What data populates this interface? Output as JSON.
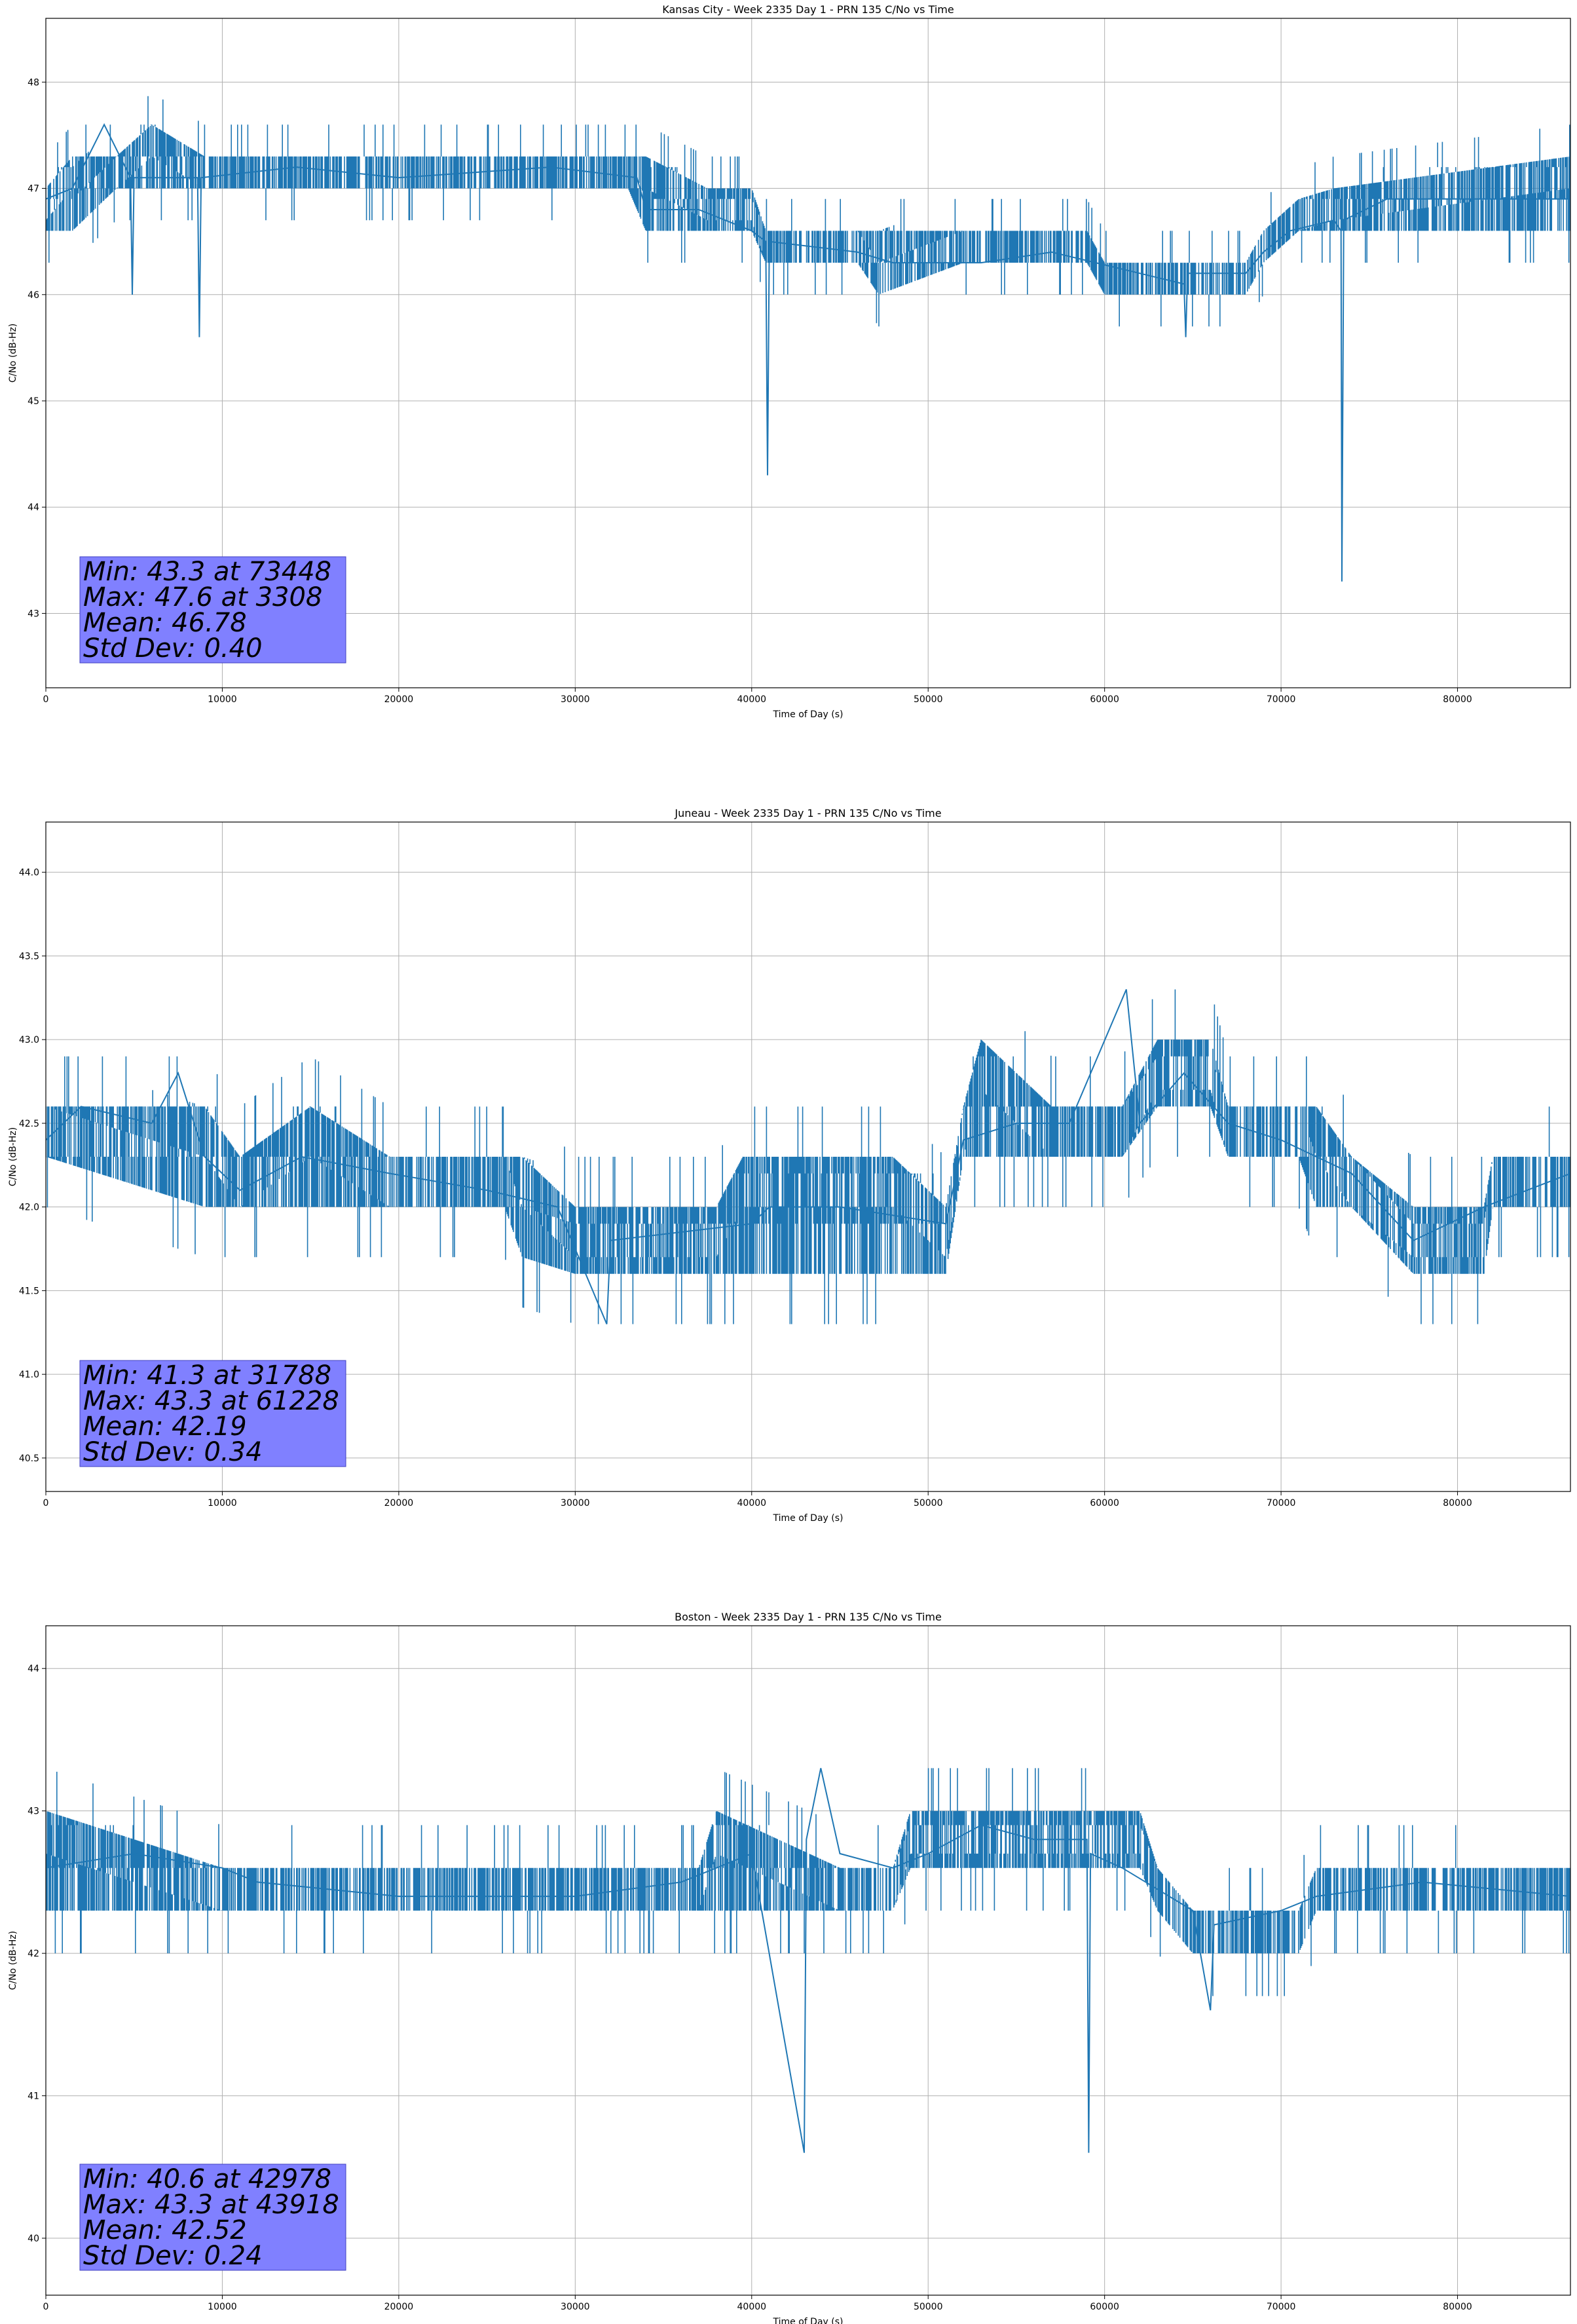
{
  "chart_data": [
    {
      "type": "line",
      "title": "Kansas City - Week 2335 Day 1 - PRN 135 C/No vs Time",
      "xlabel": "Time of Day (s)",
      "ylabel": "C/No (dB-Hz)",
      "xlim": [
        0,
        86400
      ],
      "ylim": [
        42.3,
        48.6
      ],
      "xticks": [
        0,
        10000,
        20000,
        30000,
        40000,
        50000,
        60000,
        70000,
        80000
      ],
      "xtick_labels": [
        "0",
        "10000",
        "20000",
        "30000",
        "40000",
        "50000",
        "60000",
        "70000",
        "80000"
      ],
      "yticks": [
        43,
        44,
        45,
        46,
        47,
        48
      ],
      "ytick_labels": [
        "43",
        "44",
        "45",
        "46",
        "47",
        "48"
      ],
      "grid": true,
      "line_color": "#1f77b4",
      "box_color": "#8080ff",
      "stats": [
        "Min: 43.3 at 73448",
        "Max: 47.6 at 3308",
        "Mean: 46.78",
        "Std Dev: 0.40"
      ],
      "series": [
        {
          "points": [
            [
              0,
              46.9
            ],
            [
              1500,
              47.0
            ],
            [
              3308,
              47.6
            ],
            [
              4800,
              47.1
            ],
            [
              4900,
              46.0
            ],
            [
              5000,
              47.1
            ],
            [
              8600,
              47.1
            ],
            [
              8700,
              45.6
            ],
            [
              8800,
              47.1
            ],
            [
              14200,
              47.2
            ],
            [
              20000,
              47.1
            ],
            [
              28600,
              47.2
            ],
            [
              33500,
              47.1
            ],
            [
              34000,
              46.8
            ],
            [
              37000,
              46.8
            ],
            [
              40000,
              46.6
            ],
            [
              40800,
              46.5
            ],
            [
              40900,
              44.3
            ],
            [
              41000,
              46.5
            ],
            [
              46000,
              46.4
            ],
            [
              48000,
              46.3
            ],
            [
              53000,
              46.3
            ],
            [
              57000,
              46.4
            ],
            [
              59500,
              46.3
            ],
            [
              62000,
              46.2
            ],
            [
              64500,
              46.1
            ],
            [
              64600,
              45.6
            ],
            [
              64700,
              46.2
            ],
            [
              68000,
              46.2
            ],
            [
              69000,
              46.4
            ],
            [
              70500,
              46.6
            ],
            [
              73000,
              46.7
            ],
            [
              73400,
              46.6
            ],
            [
              73448,
              43.3
            ],
            [
              73550,
              46.7
            ],
            [
              76000,
              46.9
            ],
            [
              82000,
              46.9
            ],
            [
              86400,
              46.9
            ]
          ],
          "band": [
            [
              0,
              46.6,
              47.0
            ],
            [
              1500,
              46.6,
              47.3
            ],
            [
              4000,
              47.0,
              47.3
            ],
            [
              6000,
              47.0,
              47.6
            ],
            [
              9000,
              47.0,
              47.3
            ],
            [
              33000,
              47.0,
              47.3
            ],
            [
              34000,
              46.6,
              47.3
            ],
            [
              37500,
              46.6,
              47.0
            ],
            [
              40000,
              46.6,
              47.0
            ],
            [
              40800,
              46.3,
              46.6
            ],
            [
              46000,
              46.3,
              46.6
            ],
            [
              47200,
              46.0,
              46.6
            ],
            [
              52000,
              46.3,
              46.6
            ],
            [
              59000,
              46.3,
              46.6
            ],
            [
              60000,
              46.0,
              46.3
            ],
            [
              68000,
              46.0,
              46.3
            ],
            [
              69000,
              46.3,
              46.6
            ],
            [
              71000,
              46.6,
              46.9
            ],
            [
              73000,
              46.6,
              47.0
            ],
            [
              86400,
              46.6,
              47.3
            ]
          ]
        }
      ]
    },
    {
      "type": "line",
      "title": "Juneau - Week 2335 Day 1 - PRN 135 C/No vs Time",
      "xlabel": "Time of Day (s)",
      "ylabel": "C/No (dB-Hz)",
      "xlim": [
        0,
        86400
      ],
      "ylim": [
        40.3,
        44.3
      ],
      "xticks": [
        0,
        10000,
        20000,
        30000,
        40000,
        50000,
        60000,
        70000,
        80000
      ],
      "xtick_labels": [
        "0",
        "10000",
        "20000",
        "30000",
        "40000",
        "50000",
        "60000",
        "70000",
        "80000"
      ],
      "yticks": [
        40.5,
        41.0,
        41.5,
        42.0,
        42.5,
        43.0,
        43.5,
        44.0
      ],
      "ytick_labels": [
        "40.5",
        "41.0",
        "41.5",
        "42.0",
        "42.5",
        "43.0",
        "43.5",
        "44.0"
      ],
      "grid": true,
      "line_color": "#1f77b4",
      "box_color": "#8080ff",
      "stats": [
        "Min: 41.3 at 31788",
        "Max: 43.3 at 61228",
        "Mean: 42.19",
        "Std Dev: 0.34"
      ],
      "series": [
        {
          "points": [
            [
              0,
              42.4
            ],
            [
              2000,
              42.6
            ],
            [
              6000,
              42.5
            ],
            [
              7500,
              42.8
            ],
            [
              9000,
              42.3
            ],
            [
              11000,
              42.1
            ],
            [
              14500,
              42.3
            ],
            [
              19500,
              42.2
            ],
            [
              25000,
              42.1
            ],
            [
              29000,
              42.0
            ],
            [
              31788,
              41.3
            ],
            [
              32000,
              41.8
            ],
            [
              40000,
              41.9
            ],
            [
              41000,
              42.0
            ],
            [
              45000,
              42.0
            ],
            [
              51000,
              41.9
            ],
            [
              52000,
              42.4
            ],
            [
              55000,
              42.5
            ],
            [
              58000,
              42.5
            ],
            [
              61228,
              43.3
            ],
            [
              62000,
              42.5
            ],
            [
              64500,
              42.8
            ],
            [
              67000,
              42.5
            ],
            [
              70000,
              42.4
            ],
            [
              74000,
              42.2
            ],
            [
              77500,
              41.8
            ],
            [
              81500,
              42.0
            ],
            [
              86400,
              42.2
            ]
          ],
          "band": [
            [
              0,
              42.3,
              42.6
            ],
            [
              9000,
              42.0,
              42.6
            ],
            [
              11000,
              42.0,
              42.3
            ],
            [
              15000,
              42.0,
              42.6
            ],
            [
              19500,
              42.0,
              42.3
            ],
            [
              26000,
              42.0,
              42.3
            ],
            [
              27000,
              41.7,
              42.3
            ],
            [
              30000,
              41.6,
              42.0
            ],
            [
              38000,
              41.6,
              42.0
            ],
            [
              39500,
              41.6,
              42.3
            ],
            [
              48000,
              41.6,
              42.3
            ],
            [
              51000,
              41.6,
              42.0
            ],
            [
              52000,
              42.3,
              42.6
            ],
            [
              53000,
              42.3,
              43.0
            ],
            [
              57000,
              42.3,
              42.6
            ],
            [
              60000,
              42.3,
              42.6
            ],
            [
              61000,
              42.3,
              42.6
            ],
            [
              63000,
              42.6,
              43.0
            ],
            [
              66000,
              42.6,
              43.0
            ],
            [
              67000,
              42.3,
              42.6
            ],
            [
              71000,
              42.3,
              42.6
            ],
            [
              72000,
              42.0,
              42.6
            ],
            [
              74000,
              42.0,
              42.3
            ],
            [
              77500,
              41.6,
              42.0
            ],
            [
              81500,
              41.6,
              42.0
            ],
            [
              82000,
              42.0,
              42.3
            ],
            [
              86400,
              42.0,
              42.3
            ]
          ]
        }
      ]
    },
    {
      "type": "line",
      "title": "Boston - Week 2335 Day 1 - PRN 135 C/No vs Time",
      "xlabel": "Time of Day (s)",
      "ylabel": "C/No (dB-Hz)",
      "xlim": [
        0,
        86400
      ],
      "ylim": [
        39.6,
        44.3
      ],
      "xticks": [
        0,
        10000,
        20000,
        30000,
        40000,
        50000,
        60000,
        70000,
        80000
      ],
      "xtick_labels": [
        "0",
        "10000",
        "20000",
        "30000",
        "40000",
        "50000",
        "60000",
        "70000",
        "80000"
      ],
      "yticks": [
        40,
        41,
        42,
        43,
        44
      ],
      "ytick_labels": [
        "40",
        "41",
        "42",
        "43",
        "44"
      ],
      "grid": true,
      "line_color": "#1f77b4",
      "box_color": "#8080ff",
      "stats": [
        "Min: 40.6 at 42978",
        "Max: 43.3 at 43918",
        "Mean: 42.52",
        "Std Dev: 0.24"
      ],
      "series": [
        {
          "points": [
            [
              0,
              42.6
            ],
            [
              5000,
              42.7
            ],
            [
              10000,
              42.6
            ],
            [
              12000,
              42.5
            ],
            [
              20000,
              42.4
            ],
            [
              30000,
              42.4
            ],
            [
              36000,
              42.5
            ],
            [
              40000,
              42.7
            ],
            [
              42978,
              40.6
            ],
            [
              43100,
              42.8
            ],
            [
              43918,
              43.3
            ],
            [
              45000,
              42.7
            ],
            [
              48000,
              42.6
            ],
            [
              50000,
              42.7
            ],
            [
              53000,
              42.9
            ],
            [
              56000,
              42.8
            ],
            [
              59000,
              42.8
            ],
            [
              59100,
              40.6
            ],
            [
              59200,
              42.7
            ],
            [
              61000,
              42.6
            ],
            [
              65000,
              42.3
            ],
            [
              66000,
              41.6
            ],
            [
              66200,
              42.2
            ],
            [
              70000,
              42.3
            ],
            [
              72000,
              42.4
            ],
            [
              78000,
              42.5
            ],
            [
              86400,
              42.4
            ]
          ],
          "band": [
            [
              0,
              42.3,
              43.0
            ],
            [
              10000,
              42.3,
              42.6
            ],
            [
              37000,
              42.3,
              42.6
            ],
            [
              38000,
              42.3,
              43.0
            ],
            [
              45000,
              42.3,
              42.6
            ],
            [
              48000,
              42.3,
              42.6
            ],
            [
              49000,
              42.6,
              43.0
            ],
            [
              62000,
              42.6,
              43.0
            ],
            [
              63000,
              42.3,
              42.6
            ],
            [
              65000,
              42.0,
              42.3
            ],
            [
              71000,
              42.0,
              42.3
            ],
            [
              72000,
              42.3,
              42.6
            ],
            [
              86400,
              42.3,
              42.6
            ]
          ]
        }
      ]
    }
  ]
}
